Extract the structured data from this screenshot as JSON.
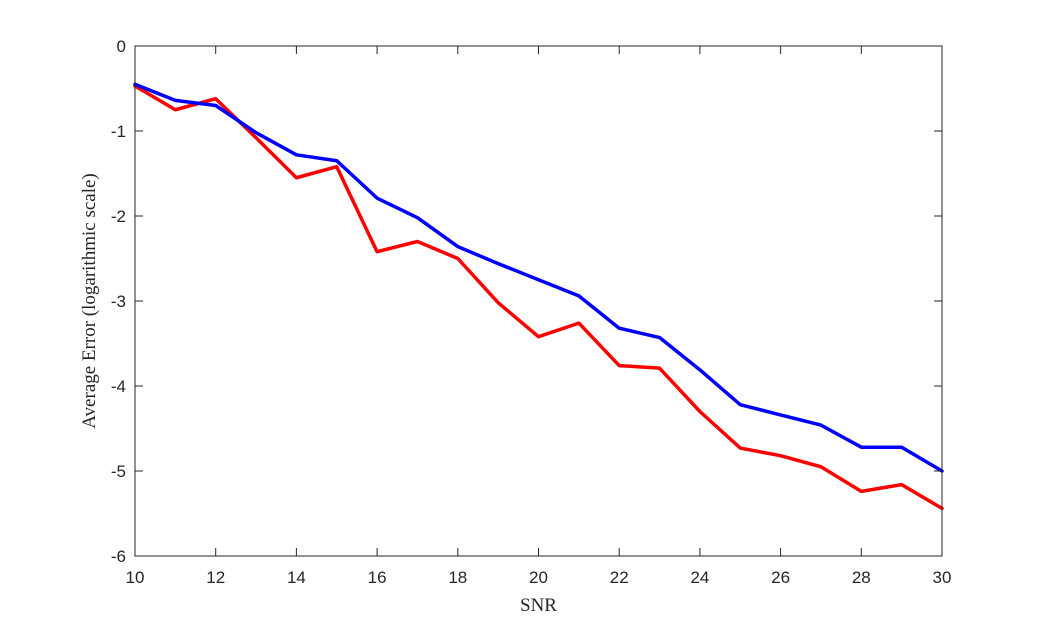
{
  "chart_data": {
    "type": "line",
    "title": "",
    "xlabel": "SNR",
    "ylabel": "Average Error (logarithmic scale)",
    "xlim": [
      10,
      30
    ],
    "ylim": [
      -6,
      0
    ],
    "xticks": [
      10,
      12,
      14,
      16,
      18,
      20,
      22,
      24,
      26,
      28,
      30
    ],
    "yticks": [
      0,
      -1,
      -2,
      -3,
      -4,
      -5,
      -6
    ],
    "grid": false,
    "legend": "none",
    "x": [
      10,
      11,
      12,
      13,
      14,
      15,
      16,
      17,
      18,
      19,
      20,
      21,
      22,
      23,
      24,
      25,
      26,
      27,
      28,
      29,
      30
    ],
    "series": [
      {
        "color": "#ff0000",
        "values": [
          -0.47,
          -0.75,
          -0.62,
          -1.08,
          -1.55,
          -1.42,
          -2.42,
          -2.3,
          -2.5,
          -3.02,
          -3.42,
          -3.26,
          -3.76,
          -3.79,
          -4.3,
          -4.73,
          -4.82,
          -4.95,
          -5.24,
          -5.16,
          -5.44
        ]
      },
      {
        "color": "#0000ff",
        "values": [
          -0.45,
          -0.64,
          -0.7,
          -1.02,
          -1.28,
          -1.35,
          -1.79,
          -2.02,
          -2.36,
          -2.56,
          -2.75,
          -2.94,
          -3.32,
          -3.43,
          -3.81,
          -4.22,
          -4.34,
          -4.46,
          -4.72,
          -4.72,
          -5.0
        ]
      }
    ]
  }
}
